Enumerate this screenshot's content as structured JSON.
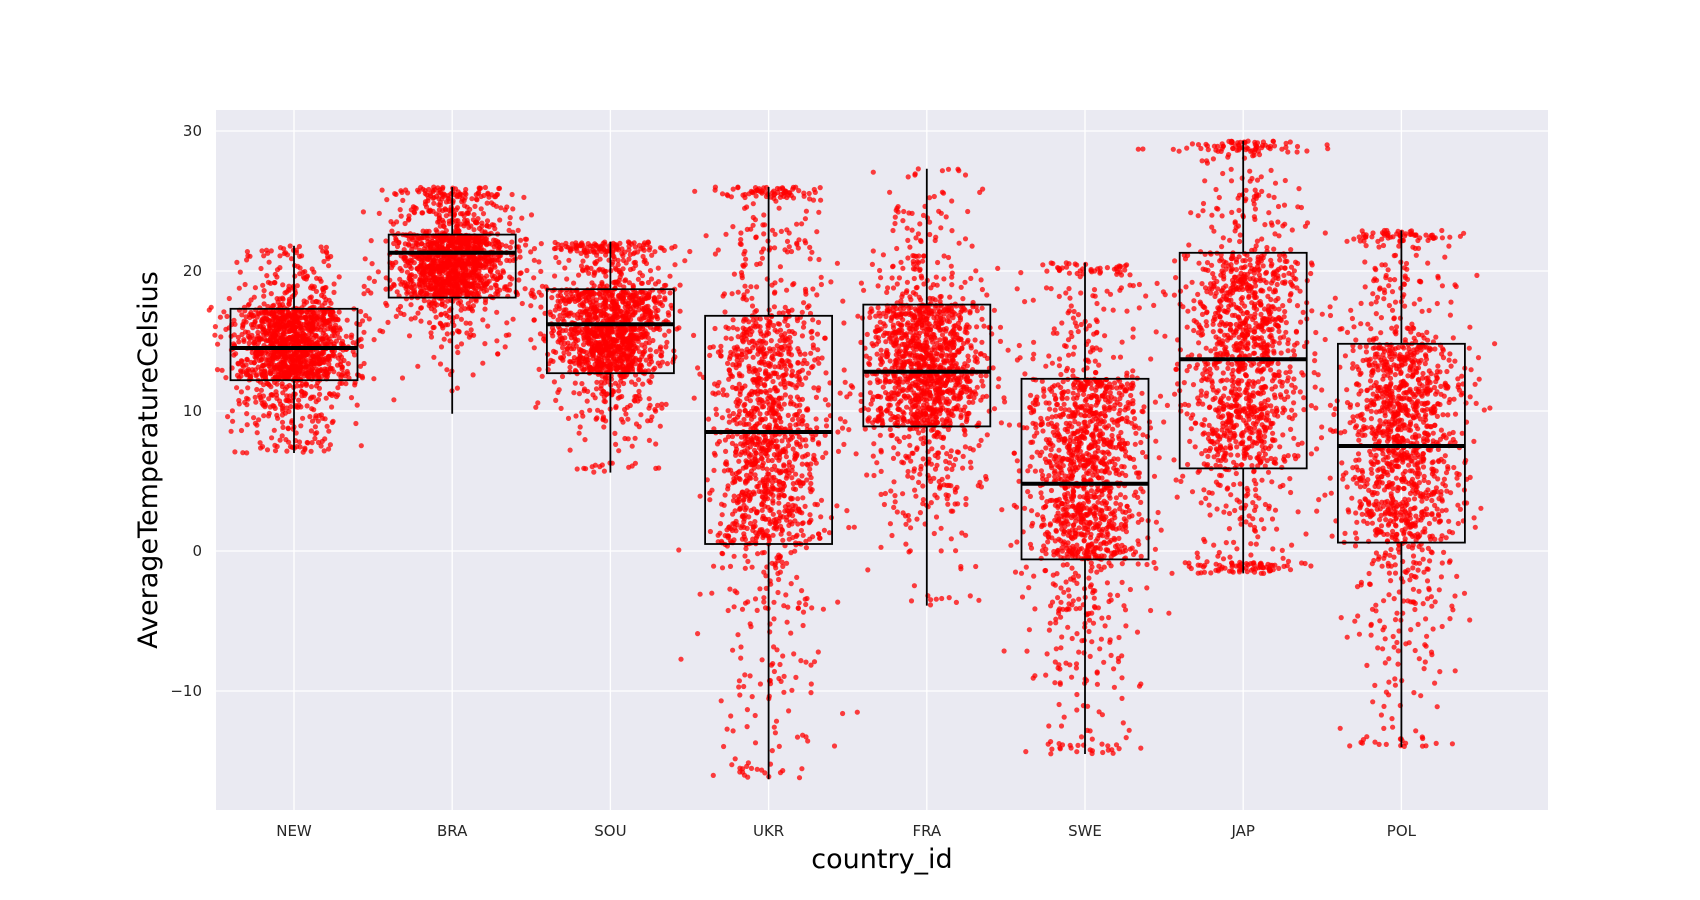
{
  "chart_data": {
    "type": "box",
    "overlay": "jittered scatter (strip) of individual observations",
    "xlabel": "country_id",
    "ylabel": "AverageTemperatureCelsius",
    "ylim": [
      -18.5,
      31.5
    ],
    "yticks": [
      30,
      20,
      10,
      0,
      -10
    ],
    "ytick_labels": [
      "30",
      "20",
      "10",
      "0",
      "−10"
    ],
    "grid": true,
    "legend": "none",
    "colors": {
      "plot_background": "#eaeaf2",
      "grid": "#ffffff",
      "points": "#ff0000",
      "box_edge": "#000000",
      "median": "#000000"
    },
    "categories": [
      "NEW",
      "BRA",
      "SOU",
      "UKR",
      "FRA",
      "SWE",
      "JAP",
      "POL"
    ],
    "boxes": [
      {
        "category": "NEW",
        "whisker_low": 7.0,
        "q1": 12.2,
        "median": 14.5,
        "q3": 17.3,
        "whisker_high": 21.8
      },
      {
        "category": "BRA",
        "whisker_low": 9.8,
        "q1": 18.1,
        "median": 21.3,
        "q3": 22.6,
        "whisker_high": 26.0
      },
      {
        "category": "SOU",
        "whisker_low": 5.6,
        "q1": 12.7,
        "median": 16.2,
        "q3": 18.7,
        "whisker_high": 22.1
      },
      {
        "category": "UKR",
        "whisker_low": -16.3,
        "q1": 0.5,
        "median": 8.5,
        "q3": 16.8,
        "whisker_high": 26.0
      },
      {
        "category": "FRA",
        "whisker_low": -3.9,
        "q1": 8.9,
        "median": 12.8,
        "q3": 17.6,
        "whisker_high": 27.3
      },
      {
        "category": "SWE",
        "whisker_low": -14.5,
        "q1": -0.6,
        "median": 4.8,
        "q3": 12.3,
        "whisker_high": 20.6
      },
      {
        "category": "JAP",
        "whisker_low": -1.6,
        "q1": 5.9,
        "median": 13.7,
        "q3": 21.3,
        "whisker_high": 29.3
      },
      {
        "category": "POL",
        "whisker_low": -14.0,
        "q1": 0.6,
        "median": 7.5,
        "q3": 14.8,
        "whisker_high": 22.9
      }
    ],
    "point_spread": [
      {
        "category": "NEW",
        "min": 7.0,
        "max": 21.8
      },
      {
        "category": "BRA",
        "min": 9.8,
        "max": 26.0
      },
      {
        "category": "SOU",
        "min": 5.6,
        "max": 22.1
      },
      {
        "category": "UKR",
        "min": -16.3,
        "max": 26.0
      },
      {
        "category": "FRA",
        "min": -3.9,
        "max": 27.3
      },
      {
        "category": "SWE",
        "min": -14.5,
        "max": 20.6
      },
      {
        "category": "JAP",
        "min": -1.6,
        "max": 29.3
      },
      {
        "category": "POL",
        "min": -14.0,
        "max": 22.9
      }
    ]
  }
}
